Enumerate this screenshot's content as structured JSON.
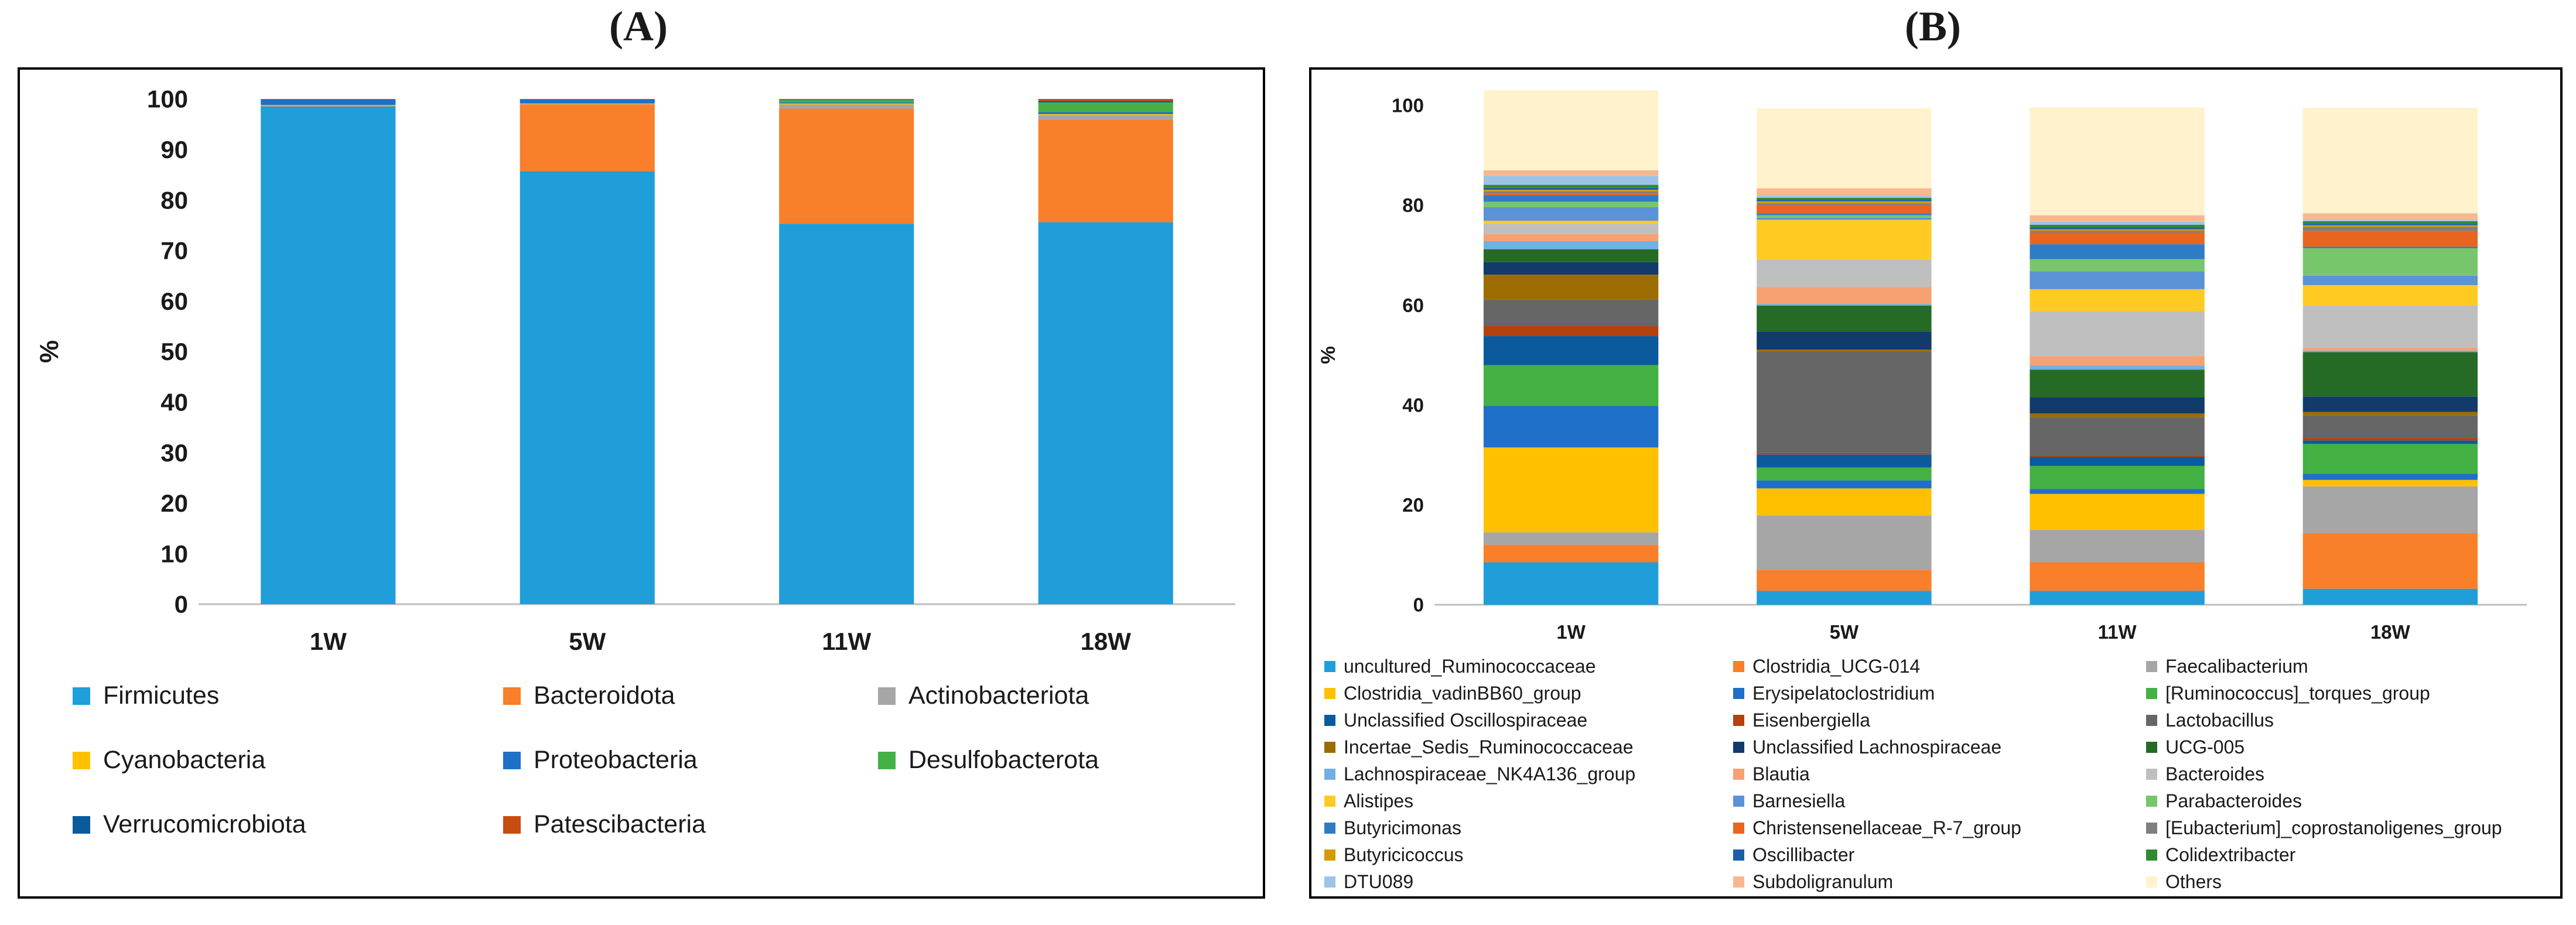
{
  "panel_labels": {
    "a": "(A)",
    "b": "(B)"
  },
  "chart_data": [
    {
      "type": "bar",
      "stacked": true,
      "title": "",
      "xlabel": "",
      "ylabel": "%",
      "ylim": [
        0,
        100
      ],
      "yticks": [
        0,
        10,
        20,
        30,
        40,
        50,
        60,
        70,
        80,
        90,
        100
      ],
      "grid": false,
      "legend_position": "bottom",
      "categories": [
        "1W",
        "5W",
        "11W",
        "18W"
      ],
      "series": [
        {
          "name": "Firmicutes",
          "color": "#1f9ed9",
          "values": [
            98.5,
            85.7,
            75.3,
            75.6
          ]
        },
        {
          "name": "Bacteroidota",
          "color": "#f97f2a",
          "values": [
            0.1,
            13.2,
            22.8,
            20.3
          ]
        },
        {
          "name": "Actinobacteriota",
          "color": "#a6a6a6",
          "values": [
            0.1,
            0.1,
            0.8,
            0.9
          ]
        },
        {
          "name": "Cyanobacteria",
          "color": "#ffc000",
          "values": [
            0.1,
            0.1,
            0.2,
            0.2
          ]
        },
        {
          "name": "Proteobacteria",
          "color": "#1e70c8",
          "values": [
            1.1,
            0.8,
            0.2,
            0.4
          ]
        },
        {
          "name": "Desulfobacterota",
          "color": "#43b144",
          "values": [
            0.0,
            0.0,
            0.5,
            1.9
          ]
        },
        {
          "name": "Verrucomicrobiota",
          "color": "#0a5a9c",
          "values": [
            0.0,
            0.0,
            0.1,
            0.3
          ]
        },
        {
          "name": "Patescibacteria",
          "color": "#c84c10",
          "values": [
            0.1,
            0.1,
            0.1,
            0.4
          ]
        }
      ]
    },
    {
      "type": "bar",
      "stacked": true,
      "title": "",
      "xlabel": "",
      "ylabel": "%",
      "ylim": [
        0,
        100
      ],
      "yticks": [
        0,
        20,
        40,
        60,
        80,
        100
      ],
      "grid": false,
      "legend_position": "bottom",
      "categories": [
        "1W",
        "5W",
        "11W",
        "18W"
      ],
      "series": [
        {
          "name": "uncultured_Ruminococcaceae",
          "color": "#1f9ed9",
          "values": [
            8.5,
            2.8,
            2.8,
            3.2
          ]
        },
        {
          "name": "Clostridia_UCG-014",
          "color": "#f97f2a",
          "values": [
            3.5,
            4.2,
            5.7,
            11.1
          ]
        },
        {
          "name": "Faecalibacterium",
          "color": "#a6a6a6",
          "values": [
            2.5,
            10.9,
            6.5,
            9.4
          ]
        },
        {
          "name": "Clostridia_vadinBB60_group",
          "color": "#ffc000",
          "values": [
            17.0,
            5.4,
            7.2,
            1.3
          ]
        },
        {
          "name": "Erysipelatoclostridium",
          "color": "#1e70c8",
          "values": [
            8.3,
            1.6,
            1.0,
            1.2
          ]
        },
        {
          "name": "[Ruminococcus]_torques_group",
          "color": "#43b144",
          "values": [
            8.2,
            2.6,
            4.6,
            6.0
          ]
        },
        {
          "name": "Unclassified Oscillospiraceae",
          "color": "#0a5a9c",
          "values": [
            5.8,
            2.6,
            1.8,
            0.7
          ]
        },
        {
          "name": "Eisenbergiella",
          "color": "#b5410e",
          "values": [
            2.0,
            0.3,
            0.3,
            0.5
          ]
        },
        {
          "name": "Lactobacillus",
          "color": "#666666",
          "values": [
            5.3,
            20.3,
            7.7,
            4.5
          ]
        },
        {
          "name": "Incertae_Sedis_Ruminococcaceae",
          "color": "#9c6c00",
          "values": [
            5.0,
            0.4,
            0.7,
            0.7
          ]
        },
        {
          "name": "Unclassified Lachnospiraceae",
          "color": "#123a6b",
          "values": [
            2.5,
            3.6,
            3.2,
            3.1
          ]
        },
        {
          "name": "UCG-005",
          "color": "#256b26",
          "values": [
            2.6,
            5.2,
            5.6,
            8.9
          ]
        },
        {
          "name": "Lachnospiraceae_NK4A136_group",
          "color": "#6fb1e4",
          "values": [
            1.6,
            0.3,
            0.8,
            0.3
          ]
        },
        {
          "name": "Blautia",
          "color": "#f7a173",
          "values": [
            1.5,
            3.4,
            1.9,
            0.6
          ]
        },
        {
          "name": "Bacteroides",
          "color": "#bfbfbf",
          "values": [
            2.0,
            5.5,
            9.0,
            8.4
          ]
        },
        {
          "name": "Alistipes",
          "color": "#ffcb22",
          "values": [
            0.6,
            8.0,
            4.4,
            4.1
          ]
        },
        {
          "name": "Barnesiella",
          "color": "#5c92d6",
          "values": [
            2.7,
            0.4,
            3.6,
            1.9
          ]
        },
        {
          "name": "Parabacteroides",
          "color": "#78c66c",
          "values": [
            1.1,
            0.5,
            2.4,
            5.5
          ]
        },
        {
          "name": "Butyricimonas",
          "color": "#2e7dc4",
          "values": [
            1.3,
            0.4,
            3.0,
            0.3
          ]
        },
        {
          "name": "Christensenellaceae_R-7_group",
          "color": "#e8651f",
          "values": [
            0.4,
            1.6,
            2.3,
            3.2
          ]
        },
        {
          "name": "[Eubacterium]_coprostanoligenes_group",
          "color": "#7f7f7f",
          "values": [
            0.4,
            0.4,
            0.4,
            0.8
          ]
        },
        {
          "name": "Butyricicoccus",
          "color": "#d49a00",
          "values": [
            0.3,
            0.4,
            0.3,
            0.3
          ]
        },
        {
          "name": "Oscillibacter",
          "color": "#1a5ea8",
          "values": [
            0.4,
            0.4,
            0.4,
            0.3
          ]
        },
        {
          "name": "Colidextribacter",
          "color": "#2f8a30",
          "values": [
            0.6,
            0.3,
            0.5,
            0.5
          ]
        },
        {
          "name": "DTU089",
          "color": "#9dc3e6",
          "values": [
            1.8,
            0.4,
            0.6,
            0.3
          ]
        },
        {
          "name": "Subdoligranulum",
          "color": "#f8b88f",
          "values": [
            1.1,
            1.5,
            1.3,
            1.3
          ]
        },
        {
          "name": "Others",
          "color": "#fff2cc",
          "values": [
            16.0,
            16.0,
            21.6,
            21.1
          ]
        }
      ]
    }
  ]
}
